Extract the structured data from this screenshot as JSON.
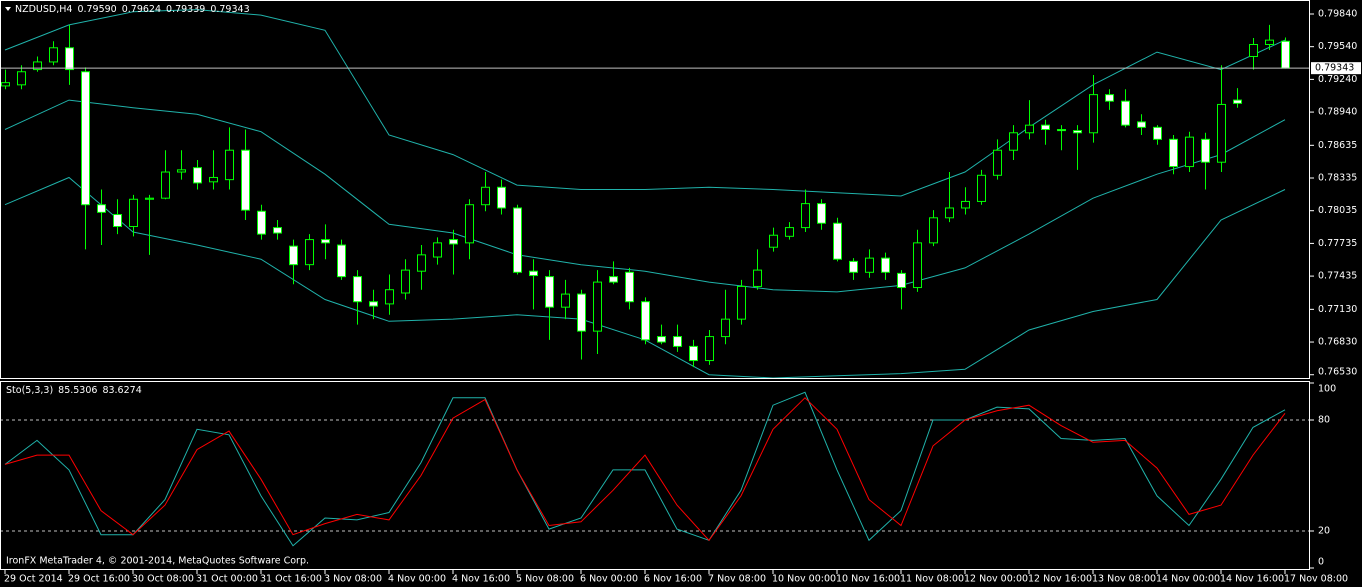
{
  "chart_data": [
    {
      "type": "candlestick",
      "title": "NZDUSD,H4",
      "info_labels": [
        "0.79590",
        "0.79624",
        "0.79339",
        "0.79343"
      ],
      "open": [
        0.7918,
        0.7919,
        0.7933,
        0.794,
        0.7953,
        0.7931,
        0.7809,
        0.78,
        0.7789,
        0.7814,
        0.7815,
        0.7839,
        0.7843,
        0.783,
        0.7832,
        0.7859,
        0.7803,
        0.7788,
        0.7771,
        0.7754,
        0.7777,
        0.7772,
        0.7743,
        0.772,
        0.7718,
        0.7728,
        0.7748,
        0.7761,
        0.7777,
        0.7774,
        0.7809,
        0.7825,
        0.7806,
        0.7748,
        0.7743,
        0.7715,
        0.7727,
        0.7693,
        0.7743,
        0.7747,
        0.772,
        0.7688,
        0.7688,
        0.7679,
        0.7666,
        0.7688,
        0.7704,
        0.7734,
        0.777,
        0.778,
        0.7788,
        0.781,
        0.7792,
        0.7757,
        0.7747,
        0.776,
        0.7746,
        0.7733,
        0.7774,
        0.7797,
        0.7806,
        0.7812,
        0.7836,
        0.7859,
        0.7875,
        0.7882,
        0.7878,
        0.7877,
        0.7875,
        0.791,
        0.7904,
        0.7885,
        0.788,
        0.7869,
        0.7844,
        0.7869,
        0.7848,
        0.7905,
        0.7945,
        0.7956,
        0.7959
      ],
      "high": [
        0.7933,
        0.7937,
        0.7945,
        0.7959,
        0.7974,
        0.7935,
        0.7823,
        0.7814,
        0.7818,
        0.7818,
        0.7859,
        0.7859,
        0.785,
        0.7859,
        0.788,
        0.7878,
        0.7809,
        0.7795,
        0.7777,
        0.7782,
        0.7791,
        0.7777,
        0.7749,
        0.7731,
        0.7745,
        0.7759,
        0.7772,
        0.7779,
        0.7786,
        0.7814,
        0.7839,
        0.7832,
        0.7809,
        0.7759,
        0.7749,
        0.774,
        0.7731,
        0.7749,
        0.7757,
        0.7751,
        0.7724,
        0.7699,
        0.7699,
        0.7685,
        0.7694,
        0.7731,
        0.774,
        0.7768,
        0.7788,
        0.7793,
        0.7823,
        0.7814,
        0.7797,
        0.776,
        0.7768,
        0.7765,
        0.7749,
        0.7786,
        0.7804,
        0.7839,
        0.7825,
        0.7841,
        0.7869,
        0.7882,
        0.7905,
        0.7887,
        0.7882,
        0.7882,
        0.7928,
        0.7915,
        0.7915,
        0.7892,
        0.7882,
        0.7873,
        0.7876,
        0.7875,
        0.7937,
        0.7916,
        0.7962,
        0.7974,
        0.79624
      ],
      "low": [
        0.7915,
        0.7915,
        0.7931,
        0.7937,
        0.7919,
        0.7768,
        0.7772,
        0.7782,
        0.778,
        0.7763,
        0.7814,
        0.7832,
        0.7823,
        0.7823,
        0.7823,
        0.7795,
        0.7777,
        0.7777,
        0.7736,
        0.7749,
        0.7759,
        0.774,
        0.7699,
        0.7704,
        0.7708,
        0.7722,
        0.7731,
        0.7754,
        0.7745,
        0.7759,
        0.7803,
        0.78,
        0.7745,
        0.7713,
        0.7685,
        0.7704,
        0.7667,
        0.7672,
        0.7736,
        0.7713,
        0.7681,
        0.7681,
        0.7674,
        0.766,
        0.7662,
        0.7681,
        0.7699,
        0.7731,
        0.7766,
        0.7777,
        0.7784,
        0.7786,
        0.7757,
        0.774,
        0.7742,
        0.774,
        0.7713,
        0.7729,
        0.7771,
        0.7793,
        0.78,
        0.7809,
        0.7832,
        0.785,
        0.7869,
        0.7864,
        0.7859,
        0.7841,
        0.7866,
        0.7896,
        0.788,
        0.7873,
        0.7864,
        0.7837,
        0.7839,
        0.7823,
        0.7839,
        0.7898,
        0.7933,
        0.7951,
        0.79339
      ],
      "close": [
        0.7921,
        0.7931,
        0.794,
        0.7953,
        0.7933,
        0.7809,
        0.7802,
        0.7789,
        0.7814,
        0.7815,
        0.7839,
        0.7841,
        0.7829,
        0.7834,
        0.7859,
        0.7804,
        0.7782,
        0.7783,
        0.7754,
        0.7777,
        0.7774,
        0.7743,
        0.772,
        0.7716,
        0.7731,
        0.7749,
        0.7763,
        0.7774,
        0.7773,
        0.7809,
        0.7825,
        0.7806,
        0.7747,
        0.7744,
        0.7715,
        0.7727,
        0.7693,
        0.7738,
        0.7738,
        0.772,
        0.7685,
        0.7683,
        0.7679,
        0.7666,
        0.7688,
        0.7704,
        0.7734,
        0.7749,
        0.7781,
        0.7788,
        0.781,
        0.7792,
        0.7759,
        0.7747,
        0.776,
        0.7747,
        0.7733,
        0.7774,
        0.7797,
        0.7806,
        0.7812,
        0.7836,
        0.7859,
        0.7875,
        0.7882,
        0.7878,
        0.7877,
        0.7875,
        0.791,
        0.7904,
        0.7882,
        0.788,
        0.7869,
        0.7844,
        0.7871,
        0.7848,
        0.7901,
        0.7902,
        0.7956,
        0.796,
        0.79343
      ],
      "up_color": "#000000",
      "down_color": "#ffffff",
      "wick_color": "#00ff00",
      "series": [
        {
          "color": "#20b2aa",
          "x": [
            0,
            4,
            8,
            12,
            16,
            20,
            24,
            28,
            32,
            36,
            40,
            44,
            48,
            52,
            56,
            60,
            64,
            68,
            72,
            76,
            80
          ],
          "values": [
            0.7951,
            0.7974,
            0.7986,
            0.7988,
            0.7983,
            0.7969,
            0.7873,
            0.7855,
            0.7827,
            0.7823,
            0.7823,
            0.7825,
            0.7823,
            0.782,
            0.7817,
            0.7839,
            0.788,
            0.7919,
            0.7949,
            0.7933,
            0.796
          ]
        },
        {
          "color": "#20b2aa",
          "x": [
            0,
            4,
            8,
            12,
            16,
            20,
            24,
            28,
            32,
            36,
            40,
            44,
            48,
            52,
            56,
            60,
            64,
            68,
            72,
            76,
            80
          ],
          "values": [
            0.7878,
            0.7905,
            0.7898,
            0.7892,
            0.7876,
            0.7837,
            0.7791,
            0.7783,
            0.7763,
            0.7754,
            0.7748,
            0.7738,
            0.7731,
            0.7729,
            0.7735,
            0.7751,
            0.7782,
            0.7815,
            0.7837,
            0.7855,
            0.7887
          ]
        },
        {
          "color": "#20b2aa",
          "x": [
            0,
            4,
            8,
            12,
            16,
            20,
            24,
            28,
            32,
            36,
            40,
            44,
            48,
            52,
            56,
            60,
            64,
            68,
            72,
            76,
            80
          ],
          "values": [
            0.7809,
            0.7834,
            0.7784,
            0.7772,
            0.7759,
            0.7722,
            0.7702,
            0.7704,
            0.7708,
            0.7704,
            0.7685,
            0.7653,
            0.765,
            0.7652,
            0.7654,
            0.7658,
            0.7694,
            0.7711,
            0.7722,
            0.7795,
            0.7823
          ]
        }
      ],
      "price_line": {
        "value": 0.79343,
        "label": "0.79343",
        "color": "#c0c0c0"
      },
      "xlim": [
        -0.3125,
        81.4375
      ],
      "ylim": [
        0.765,
        0.7995
      ],
      "yticks": [
        {
          "value": 0.7984,
          "label": "0.79840"
        },
        {
          "value": 0.7954,
          "label": "0.79540"
        },
        {
          "value": 0.7924,
          "label": "0.79240"
        },
        {
          "value": 0.7894,
          "label": "0.78940"
        },
        {
          "value": 0.78635,
          "label": "0.78635"
        },
        {
          "value": 0.78335,
          "label": "0.78335"
        },
        {
          "value": 0.78035,
          "label": "0.78035"
        },
        {
          "value": 0.77735,
          "label": "0.77735"
        },
        {
          "value": 0.77435,
          "label": "0.77435"
        },
        {
          "value": 0.7713,
          "label": "0.77130"
        },
        {
          "value": 0.7683,
          "label": "0.76830"
        },
        {
          "value": 0.7653,
          "label": "0.76530"
        }
      ]
    },
    {
      "type": "line",
      "title": "Sto(5,3,3)",
      "info_labels": [
        "85.5306",
        "83.6274"
      ],
      "series": [
        {
          "color": "#20b2aa",
          "x": [
            0,
            2,
            4,
            6,
            8,
            10,
            12,
            14,
            16,
            18,
            20,
            22,
            24,
            26,
            28,
            30,
            32,
            34,
            36,
            38,
            40,
            42,
            44,
            46,
            48,
            50,
            52,
            54,
            56,
            58,
            60,
            62,
            64,
            66,
            68,
            70,
            72,
            74,
            76,
            78,
            80
          ],
          "values": [
            56,
            69,
            53,
            18,
            18,
            37,
            75,
            72,
            39,
            12,
            27,
            26,
            30,
            57,
            92,
            92,
            53,
            21,
            27,
            53,
            53,
            21,
            15,
            42,
            88,
            95,
            53,
            15,
            31,
            80,
            80,
            87,
            86,
            70,
            69,
            70,
            39,
            23,
            48,
            76,
            85.5306
          ]
        },
        {
          "color": "#ff0000",
          "x": [
            0,
            2,
            4,
            6,
            8,
            10,
            12,
            14,
            16,
            18,
            20,
            22,
            24,
            26,
            28,
            30,
            32,
            34,
            36,
            38,
            40,
            42,
            44,
            46,
            48,
            50,
            52,
            54,
            56,
            58,
            60,
            62,
            64,
            66,
            68,
            70,
            72,
            74,
            76,
            78,
            80
          ],
          "values": [
            56,
            61,
            61,
            31,
            18,
            34,
            64,
            74,
            48,
            18,
            24,
            29,
            26,
            50,
            81,
            91,
            53,
            23,
            25,
            42,
            61,
            34,
            15,
            39,
            75,
            92,
            75,
            37,
            23,
            66,
            80,
            85,
            88,
            77,
            68,
            69,
            54,
            29,
            34,
            61,
            83.6274
          ]
        }
      ],
      "levels": [
        20,
        80
      ],
      "xlim": [
        -0.3125,
        81.4375
      ],
      "ylim": [
        0,
        100
      ],
      "yticks": [
        0,
        20,
        80,
        100
      ],
      "xticks": [
        {
          "value": 0,
          "label": "29 Oct 2014"
        },
        {
          "value": 4,
          "label": "29 Oct 16:00"
        },
        {
          "value": 8,
          "label": "30 Oct 08:00"
        },
        {
          "value": 12,
          "label": "31 Oct 00:00"
        },
        {
          "value": 16,
          "label": "31 Oct 16:00"
        },
        {
          "value": 20,
          "label": "3 Nov 08:00"
        },
        {
          "value": 24,
          "label": "4 Nov 00:00"
        },
        {
          "value": 28,
          "label": "4 Nov 16:00"
        },
        {
          "value": 32,
          "label": "5 Nov 08:00"
        },
        {
          "value": 36,
          "label": "6 Nov 00:00"
        },
        {
          "value": 40,
          "label": "6 Nov 16:00"
        },
        {
          "value": 44,
          "label": "7 Nov 08:00"
        },
        {
          "value": 48,
          "label": "10 Nov 00:00"
        },
        {
          "value": 52,
          "label": "10 Nov 16:00"
        },
        {
          "value": 56,
          "label": "11 Nov 08:00"
        },
        {
          "value": 60,
          "label": "12 Nov 00:00"
        },
        {
          "value": 64,
          "label": "12 Nov 16:00"
        },
        {
          "value": 68,
          "label": "13 Nov 08:00"
        },
        {
          "value": 72,
          "label": "14 Nov 00:00"
        },
        {
          "value": 76,
          "label": "14 Nov 16:00"
        },
        {
          "value": 80,
          "label": "17 Nov 08:00"
        }
      ]
    }
  ],
  "footer": "IronFX MetaTrader 4, © 2001-2014, MetaQuotes Software Corp."
}
